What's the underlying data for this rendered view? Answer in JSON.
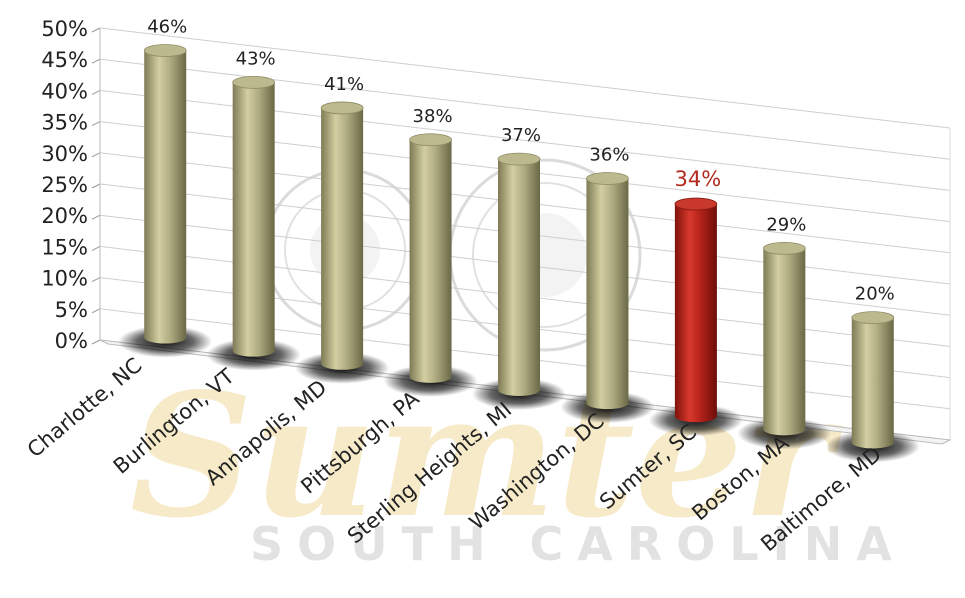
{
  "chart_data": {
    "type": "bar",
    "categories": [
      "Charlotte, NC",
      "Burlington, VT",
      "Annapolis, MD",
      "Pittsburgh, PA",
      "Sterling Heights, MI",
      "Washington, DC",
      "Sumter, SC",
      "Boston, MA",
      "Baltimore, MD"
    ],
    "values": [
      46,
      43,
      41,
      38,
      37,
      36,
      34,
      29,
      20
    ],
    "value_labels": [
      "46%",
      "43%",
      "41%",
      "38%",
      "37%",
      "36%",
      "34%",
      "29%",
      "20%"
    ],
    "highlight_index": 6,
    "colors": {
      "bar": "#a9a57c",
      "highlight": "#b5231a",
      "highlight_label": "#b32a1f",
      "grid": "#cfcfcf"
    },
    "y_ticks": [
      "0%",
      "5%",
      "10%",
      "15%",
      "20%",
      "25%",
      "30%",
      "35%",
      "40%",
      "45%",
      "50%"
    ],
    "ylim": [
      0,
      50
    ],
    "grid": true,
    "legend": "none",
    "style": "3d-cylinder"
  },
  "watermark": {
    "script": "Sumter",
    "subtitle": "SOUTH CAROLINA"
  }
}
